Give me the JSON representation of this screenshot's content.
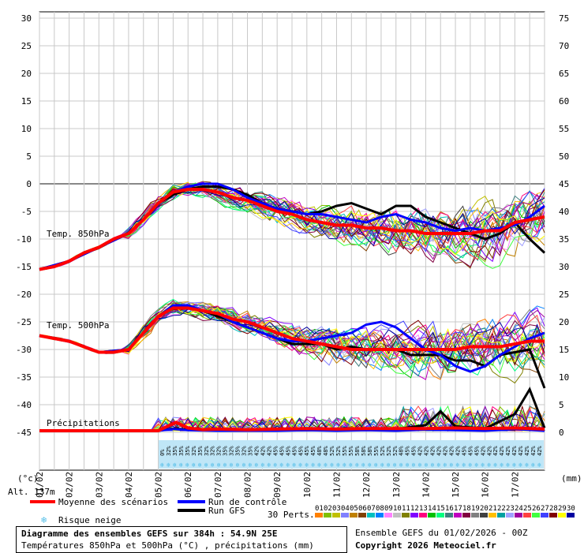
{
  "chart_data": {
    "type": "line",
    "title": "Diagramme des ensembles GEFS sur 384h : 54.9N 25E",
    "subtitle": "Températures 850hPa et 500hPa (°C) , précipitations (mm)",
    "y_left_ticks": [
      "30",
      "25",
      "20",
      "15",
      "10",
      "5",
      "0",
      "-5",
      "-10",
      "-15",
      "-20",
      "-25",
      "-30",
      "-35",
      "-40",
      "-45"
    ],
    "y_right_ticks": [
      "75",
      "70",
      "65",
      "60",
      "55",
      "50",
      "45",
      "40",
      "35",
      "30",
      "25",
      "20",
      "15",
      "10",
      "5",
      "0"
    ],
    "y_left_unit": "(°c)",
    "y_right_unit": "(mm)",
    "altitude_label": "Alt. 137m",
    "x_ticks": [
      "01/02",
      "02/02",
      "03/02",
      "04/02",
      "05/02",
      "06/02",
      "07/02",
      "08/02",
      "09/02",
      "10/02",
      "11/02",
      "12/02",
      "13/02",
      "14/02",
      "15/02",
      "16/02",
      "17/02"
    ],
    "panel_labels": {
      "t850": "Temp. 850hPa",
      "t500": "Temp. 500hPa",
      "precip": "Précipitations"
    },
    "snow_risk_percent": [
      "0%",
      "32%",
      "35%",
      "35%",
      "35%",
      "32%",
      "35%",
      "32%",
      "32%",
      "32%",
      "35%",
      "32%",
      "35%",
      "32%",
      "35%",
      "42%",
      "42%",
      "42%",
      "45%",
      "45%",
      "45%",
      "45%",
      "45%",
      "45%",
      "45%",
      "48%",
      "48%",
      "52%",
      "52%",
      "55%",
      "55%",
      "58%",
      "58%",
      "58%",
      "55%",
      "52%",
      "52%",
      "52%",
      "48%",
      "45%",
      "45%",
      "42%",
      "42%",
      "42%",
      "42%",
      "42%",
      "42%",
      "42%",
      "45%",
      "45%",
      "45%",
      "42%",
      "42%",
      "42%",
      "42%",
      "42%",
      "42%",
      "42%",
      "42%",
      "42%",
      "42%"
    ],
    "series": [
      {
        "name": "Moyenne des scénarios",
        "color": "#ff0000",
        "t850": [
          [
            0,
            -15.5
          ],
          [
            0.5,
            -15
          ],
          [
            1,
            -14
          ],
          [
            1.5,
            -12.5
          ],
          [
            2,
            -11.5
          ],
          [
            2.5,
            -10
          ],
          [
            3,
            -9
          ],
          [
            3.5,
            -6.5
          ],
          [
            4,
            -3.5
          ],
          [
            4.5,
            -1.5
          ],
          [
            5,
            -1
          ],
          [
            5.5,
            -1
          ],
          [
            6,
            -1.5
          ],
          [
            6.5,
            -2.5
          ],
          [
            7,
            -3
          ],
          [
            7.5,
            -4
          ],
          [
            8,
            -5
          ],
          [
            8.5,
            -5.5
          ],
          [
            9,
            -6.5
          ],
          [
            9.5,
            -7
          ],
          [
            10,
            -7.5
          ],
          [
            10.5,
            -7.5
          ],
          [
            11,
            -8
          ],
          [
            11.5,
            -8
          ],
          [
            12,
            -8.5
          ],
          [
            12.5,
            -8.5
          ],
          [
            13,
            -9
          ],
          [
            13.5,
            -9
          ],
          [
            14,
            -9
          ],
          [
            14.5,
            -9
          ],
          [
            15,
            -8.5
          ],
          [
            15.5,
            -8.5
          ],
          [
            16,
            -7
          ],
          [
            16.5,
            -6.5
          ],
          [
            17,
            -6
          ]
        ],
        "t500": [
          [
            0,
            -27.5
          ],
          [
            0.5,
            -28
          ],
          [
            1,
            -28.5
          ],
          [
            1.5,
            -29.5
          ],
          [
            2,
            -30.5
          ],
          [
            2.5,
            -30.5
          ],
          [
            3,
            -30
          ],
          [
            3.5,
            -27
          ],
          [
            4,
            -24
          ],
          [
            4.5,
            -22.5
          ],
          [
            5,
            -22.5
          ],
          [
            5.5,
            -23
          ],
          [
            6,
            -23.5
          ],
          [
            6.5,
            -24.5
          ],
          [
            7,
            -25
          ],
          [
            7.5,
            -26
          ],
          [
            8,
            -27
          ],
          [
            8.5,
            -28
          ],
          [
            9,
            -28.5
          ],
          [
            9.5,
            -29
          ],
          [
            10,
            -29.5
          ],
          [
            10.5,
            -30
          ],
          [
            11,
            -30
          ],
          [
            11.5,
            -30
          ],
          [
            12,
            -30
          ],
          [
            12.5,
            -30
          ],
          [
            13,
            -30
          ],
          [
            13.5,
            -30
          ],
          [
            14,
            -30
          ],
          [
            14.5,
            -29.5
          ],
          [
            15,
            -29.5
          ],
          [
            15.5,
            -29.5
          ],
          [
            16,
            -29
          ],
          [
            16.5,
            -28.5
          ],
          [
            17,
            -28.5
          ]
        ],
        "precip_mm": [
          [
            0,
            0
          ],
          [
            4,
            0
          ],
          [
            4.3,
            0.8
          ],
          [
            4.6,
            1.5
          ],
          [
            5,
            0.5
          ],
          [
            5.5,
            0.2
          ],
          [
            6,
            0.3
          ],
          [
            7,
            0.2
          ],
          [
            8,
            0.3
          ],
          [
            9,
            0.4
          ],
          [
            10,
            0.3
          ],
          [
            11,
            0.4
          ],
          [
            12,
            0.4
          ],
          [
            13,
            0.4
          ],
          [
            14,
            0.5
          ],
          [
            15,
            0.4
          ],
          [
            16,
            0.5
          ],
          [
            17,
            0.3
          ]
        ]
      },
      {
        "name": "Run de contrôle",
        "color": "#0000ff",
        "t850": [
          [
            0,
            -15.5
          ],
          [
            1,
            -14
          ],
          [
            2,
            -11.5
          ],
          [
            3,
            -9
          ],
          [
            3.5,
            -6.5
          ],
          [
            4,
            -3.5
          ],
          [
            4.5,
            -1.5
          ],
          [
            5,
            -0.5
          ],
          [
            5.5,
            0
          ],
          [
            6,
            0
          ],
          [
            6.5,
            -1
          ],
          [
            7,
            -2.5
          ],
          [
            7.5,
            -3.5
          ],
          [
            8,
            -4.5
          ],
          [
            8.5,
            -5
          ],
          [
            9,
            -5.5
          ],
          [
            9.5,
            -5.5
          ],
          [
            10,
            -6
          ],
          [
            10.5,
            -6.5
          ],
          [
            11,
            -7
          ],
          [
            11.5,
            -6
          ],
          [
            12,
            -5.5
          ],
          [
            12.5,
            -6.5
          ],
          [
            13,
            -7
          ],
          [
            13.5,
            -8
          ],
          [
            14,
            -8.5
          ],
          [
            14.5,
            -8
          ],
          [
            15,
            -8.5
          ],
          [
            15.5,
            -8
          ],
          [
            16,
            -7.5
          ],
          [
            16.5,
            -6
          ],
          [
            17,
            -4
          ]
        ],
        "t500": [
          [
            0,
            -27.5
          ],
          [
            1,
            -28.5
          ],
          [
            2,
            -30.5
          ],
          [
            3,
            -30
          ],
          [
            3.5,
            -27
          ],
          [
            4,
            -24
          ],
          [
            4.5,
            -22
          ],
          [
            5,
            -22
          ],
          [
            5.5,
            -23
          ],
          [
            6,
            -23.5
          ],
          [
            6.5,
            -25
          ],
          [
            7,
            -26
          ],
          [
            7.5,
            -27
          ],
          [
            8,
            -28
          ],
          [
            8.5,
            -28.5
          ],
          [
            9,
            -28.5
          ],
          [
            9.5,
            -28
          ],
          [
            10,
            -27.5
          ],
          [
            10.5,
            -27
          ],
          [
            11,
            -25.5
          ],
          [
            11.5,
            -25
          ],
          [
            12,
            -26
          ],
          [
            12.5,
            -28
          ],
          [
            13,
            -30
          ],
          [
            13.5,
            -31
          ],
          [
            14,
            -33
          ],
          [
            14.5,
            -34
          ],
          [
            15,
            -33
          ],
          [
            15.5,
            -31
          ],
          [
            16,
            -29.5
          ],
          [
            16.5,
            -28
          ],
          [
            17,
            -27
          ]
        ],
        "precip_mm": [
          [
            0,
            0
          ],
          [
            4,
            0
          ],
          [
            4.5,
            0.3
          ],
          [
            5,
            0.1
          ],
          [
            6,
            0
          ],
          [
            8,
            0
          ],
          [
            9,
            0.1
          ],
          [
            10,
            0
          ],
          [
            11,
            0.1
          ],
          [
            12,
            0
          ],
          [
            13,
            0.2
          ],
          [
            14,
            0.1
          ],
          [
            15,
            0
          ],
          [
            16,
            0.3
          ],
          [
            17,
            0
          ]
        ]
      },
      {
        "name": "Run GFS",
        "color": "#000000",
        "t850": [
          [
            0,
            -15.5
          ],
          [
            1,
            -14
          ],
          [
            2,
            -11.5
          ],
          [
            3,
            -9
          ],
          [
            3.5,
            -6.5
          ],
          [
            4,
            -3.5
          ],
          [
            4.5,
            -2
          ],
          [
            5,
            -1
          ],
          [
            5.5,
            -0.5
          ],
          [
            6,
            -0.5
          ],
          [
            6.5,
            -1
          ],
          [
            7,
            -2
          ],
          [
            7.5,
            -3.5
          ],
          [
            8,
            -4.5
          ],
          [
            8.5,
            -5
          ],
          [
            9,
            -5.5
          ],
          [
            9.5,
            -5
          ],
          [
            10,
            -4
          ],
          [
            10.5,
            -3.5
          ],
          [
            11,
            -4.5
          ],
          [
            11.5,
            -5.5
          ],
          [
            12,
            -4
          ],
          [
            12.5,
            -4
          ],
          [
            13,
            -6
          ],
          [
            13.5,
            -7
          ],
          [
            14,
            -8
          ],
          [
            14.5,
            -9
          ],
          [
            15,
            -10
          ],
          [
            15.5,
            -9
          ],
          [
            16,
            -7
          ],
          [
            16.5,
            -10
          ],
          [
            17,
            -12.5
          ]
        ],
        "t500": [
          [
            0,
            -27.5
          ],
          [
            1,
            -28.5
          ],
          [
            2,
            -30.5
          ],
          [
            3,
            -30
          ],
          [
            3.5,
            -27
          ],
          [
            4,
            -24
          ],
          [
            4.5,
            -22
          ],
          [
            5,
            -22.5
          ],
          [
            5.5,
            -23
          ],
          [
            6,
            -24
          ],
          [
            6.5,
            -25
          ],
          [
            7,
            -26
          ],
          [
            7.5,
            -27
          ],
          [
            8,
            -28
          ],
          [
            8.5,
            -29
          ],
          [
            9,
            -29
          ],
          [
            9.5,
            -29
          ],
          [
            10,
            -30
          ],
          [
            10.5,
            -29.5
          ],
          [
            11,
            -30
          ],
          [
            11.5,
            -30
          ],
          [
            12,
            -30
          ],
          [
            12.5,
            -31
          ],
          [
            13,
            -31
          ],
          [
            13.5,
            -31
          ],
          [
            14,
            -32
          ],
          [
            14.5,
            -32
          ],
          [
            15,
            -33
          ],
          [
            15.5,
            -31
          ],
          [
            16,
            -30.5
          ],
          [
            16.5,
            -30
          ],
          [
            17,
            -37
          ]
        ],
        "precip_mm": [
          [
            0,
            0
          ],
          [
            4,
            0
          ],
          [
            4.5,
            0.4
          ],
          [
            5,
            0.2
          ],
          [
            6,
            0.1
          ],
          [
            7,
            0.1
          ],
          [
            9,
            0.1
          ],
          [
            10,
            0.2
          ],
          [
            11,
            0.3
          ],
          [
            12,
            0.3
          ],
          [
            13,
            1
          ],
          [
            13.5,
            3.5
          ],
          [
            14,
            0.8
          ],
          [
            15,
            0.4
          ],
          [
            16,
            3
          ],
          [
            16.5,
            7.5
          ],
          [
            17,
            0.5
          ]
        ]
      }
    ],
    "members_count_label": "30 Perts.",
    "member_numbers": [
      "01",
      "02",
      "03",
      "04",
      "05",
      "06",
      "07",
      "08",
      "09",
      "10",
      "11",
      "12",
      "13",
      "14",
      "15",
      "16",
      "17",
      "18",
      "19",
      "20",
      "21",
      "22",
      "23",
      "24",
      "25",
      "26",
      "27",
      "28",
      "29",
      "30"
    ],
    "member_colors": [
      "#ff8000",
      "#80c000",
      "#c0c000",
      "#8080ff",
      "#c08000",
      "#804000",
      "#00c0c0",
      "#0080ff",
      "#ff80ff",
      "#c0c0c0",
      "#808000",
      "#8000ff",
      "#ff0080",
      "#00c000",
      "#00ff80",
      "#408080",
      "#c000c0",
      "#800040",
      "#808080",
      "#404040",
      "#ffc000",
      "#00a0a0",
      "#a0a0ff",
      "#a000a0",
      "#ff4040",
      "#40ff40",
      "#4040ff",
      "#800000",
      "#ffff00",
      "#0000a0"
    ],
    "legend": {
      "mean": "Moyenne des scénarios",
      "control": "Run de contrôle",
      "gfs": "Run GFS",
      "snow": "Risque neige"
    },
    "grid": true
  },
  "footer": {
    "title": "Diagramme des ensembles GEFS sur 384h : 54.9N 25E",
    "subtitle": "Températures 850hPa et 500hPa (°C) , précipitations (mm)",
    "run": "Ensemble GEFS du 01/02/2026 - 00Z",
    "copyright": "Copyright 2026 Meteociel.fr"
  }
}
